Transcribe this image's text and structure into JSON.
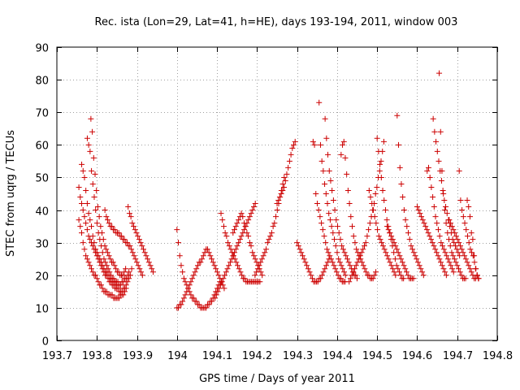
{
  "chart_data": {
    "type": "scatter",
    "title": "Rec. ista (Lon=29, Lat=41, h=HE), days 193-194, 2011, window 003",
    "xlabel": "GPS time / Days of year 2011",
    "ylabel": "STEC from uqrg / TECUs",
    "xlim": [
      193.7,
      194.8
    ],
    "ylim": [
      0,
      90
    ],
    "xticks": [
      193.7,
      193.8,
      193.9,
      194.0,
      194.1,
      194.2,
      194.3,
      194.4,
      194.5,
      194.6,
      194.7,
      194.8
    ],
    "xtick_labels": [
      "193.7",
      "193.8",
      "193.9",
      "194",
      "194.1",
      "194.2",
      "194.3",
      "194.4",
      "194.5",
      "194.6",
      "194.7",
      "194.8"
    ],
    "yticks": [
      0,
      10,
      20,
      30,
      40,
      50,
      60,
      70,
      80,
      90
    ],
    "ytick_labels": [
      "0",
      "10",
      "20",
      "30",
      "40",
      "50",
      "60",
      "70",
      "80",
      "90"
    ],
    "grid": true,
    "marker": "+",
    "color": "#cc0000",
    "x_step": 0.00347,
    "series": [
      {
        "name": "s1",
        "x_start": 193.755,
        "values": [
          37,
          35,
          33,
          30,
          28,
          26,
          25,
          24,
          23,
          22,
          21,
          20,
          20,
          19,
          18,
          17,
          17,
          16,
          15,
          15,
          15,
          14,
          14,
          14,
          14,
          13,
          13,
          13,
          13,
          13,
          14,
          14,
          14,
          15,
          16
        ]
      },
      {
        "name": "s2",
        "x_start": 193.755,
        "values": [
          47,
          44,
          42,
          40,
          38,
          36,
          34,
          32,
          31,
          30,
          29,
          28,
          27,
          26,
          25,
          24,
          23,
          22,
          21,
          20,
          20,
          19,
          18,
          18,
          17,
          17,
          16,
          16,
          16,
          15,
          15,
          15,
          16,
          16,
          17,
          18,
          19,
          20,
          22
        ]
      },
      {
        "name": "s3",
        "x_start": 193.762,
        "values": [
          54,
          52,
          50,
          46,
          42,
          39,
          37,
          35,
          32,
          30,
          28,
          27,
          26,
          25,
          24,
          23,
          22,
          21,
          21,
          20,
          19,
          19,
          18,
          18,
          18,
          17,
          17,
          17,
          17,
          18,
          18,
          19,
          19,
          20,
          21
        ]
      },
      {
        "name": "s4",
        "x_start": 193.776,
        "values": [
          62,
          60,
          58,
          52,
          48,
          44,
          40,
          36,
          33,
          31,
          29,
          27,
          25,
          24,
          23,
          22,
          21,
          20,
          19,
          19,
          18,
          18,
          18
        ]
      },
      {
        "name": "s5",
        "x_start": 193.785,
        "values": [
          68,
          64,
          56,
          51,
          46,
          41,
          38,
          35,
          33,
          31,
          29,
          28,
          27,
          26,
          25,
          24,
          24,
          23,
          22,
          21,
          21,
          20,
          20,
          20,
          21,
          22
        ]
      },
      {
        "name": "s6",
        "x_start": 193.82,
        "values": [
          40,
          38,
          37,
          36,
          35,
          35,
          34,
          34,
          33,
          33,
          33,
          32,
          32,
          31,
          31,
          30,
          30,
          29,
          29,
          28,
          27,
          26,
          25,
          24,
          23,
          22,
          21,
          20
        ]
      },
      {
        "name": "s7",
        "x_start": 193.878,
        "values": [
          41,
          39,
          38,
          36,
          35,
          34,
          33,
          32,
          31,
          30,
          29,
          28,
          27,
          26,
          25,
          24,
          23,
          22,
          21
        ]
      },
      {
        "name": "s8",
        "x_start": 194.0,
        "values": [
          34,
          30,
          26,
          23,
          21,
          19,
          18,
          17,
          16,
          15,
          14,
          13,
          13,
          12,
          12,
          11,
          11,
          10,
          10,
          10,
          10,
          10,
          11,
          11,
          12,
          12,
          13,
          14,
          15,
          16,
          17,
          18
        ]
      },
      {
        "name": "s9",
        "x_start": 194.0,
        "values": [
          10,
          10,
          11,
          11,
          12,
          13,
          14,
          15,
          16,
          17,
          18,
          19,
          20,
          21,
          22,
          23,
          24,
          24,
          25,
          26,
          27,
          28,
          28,
          27,
          26,
          25,
          24,
          23,
          22,
          21,
          20,
          19,
          18,
          17,
          16
        ]
      },
      {
        "name": "s10",
        "x_start": 194.095,
        "values": [
          13,
          14,
          15,
          16,
          17,
          18,
          19,
          20,
          21,
          22,
          23,
          24,
          25,
          26,
          27,
          28,
          29,
          30,
          31,
          32,
          33,
          34,
          35,
          36,
          37,
          38,
          39,
          40,
          41,
          42
        ]
      },
      {
        "name": "s11",
        "x_start": 194.11,
        "values": [
          39,
          37,
          35,
          33,
          32,
          30,
          29,
          28,
          27,
          26,
          25,
          24,
          23,
          22,
          21,
          20,
          19,
          19,
          18,
          18,
          18,
          18,
          18,
          18,
          18,
          18,
          18,
          18,
          18
        ]
      },
      {
        "name": "s12",
        "x_start": 194.14,
        "values": [
          33,
          34,
          35,
          36,
          37,
          38,
          39,
          38,
          36,
          35,
          33,
          32,
          30,
          29,
          27,
          26,
          25,
          24,
          23,
          22,
          21,
          20
        ]
      },
      {
        "name": "s13",
        "x_start": 194.195,
        "values": [
          20,
          21,
          22,
          23,
          24,
          25,
          26,
          27,
          28,
          30,
          31,
          32,
          33,
          35,
          36,
          38,
          40,
          42,
          44,
          46,
          48,
          50
        ]
      },
      {
        "name": "s14",
        "x_start": 194.25,
        "values": [
          42,
          43,
          44,
          45,
          46,
          47,
          49,
          51,
          53,
          55,
          57,
          59,
          60,
          61
        ]
      },
      {
        "name": "s15",
        "x_start": 194.3,
        "values": [
          30,
          29,
          28,
          27,
          26,
          25,
          24,
          23,
          22,
          21,
          20,
          19,
          18,
          18,
          18,
          18,
          19,
          19,
          20,
          21,
          22,
          23,
          24,
          25
        ]
      },
      {
        "name": "s16",
        "x_start": 194.34,
        "values": [
          61,
          60,
          45,
          42,
          40,
          38,
          36,
          34,
          32,
          30,
          28,
          27,
          26,
          25,
          24,
          23,
          22,
          21,
          20,
          19,
          19,
          18,
          18,
          18
        ]
      },
      {
        "name": "s17",
        "x_start": 194.355,
        "values": [
          73,
          60,
          55,
          52,
          48,
          45,
          42,
          39,
          37,
          35,
          33,
          31,
          29,
          27,
          25,
          24,
          23,
          22,
          21,
          20
        ]
      },
      {
        "name": "s18",
        "x_start": 194.37,
        "values": [
          68,
          62,
          57,
          52,
          49,
          46,
          43,
          40,
          37,
          35,
          33,
          31,
          29,
          28,
          27,
          26,
          25,
          24,
          23,
          22,
          21,
          20,
          20,
          19
        ]
      },
      {
        "name": "s19",
        "x_start": 194.41,
        "values": [
          57,
          60,
          61,
          56,
          51,
          46,
          42,
          38,
          35,
          32,
          30,
          28,
          27,
          26,
          25,
          24,
          23,
          22,
          21,
          20,
          20,
          19,
          19,
          19,
          20,
          21
        ]
      },
      {
        "name": "s20",
        "x_start": 194.43,
        "values": [
          18,
          19,
          20,
          21,
          22,
          23,
          24,
          25,
          26,
          27,
          28,
          29,
          30,
          32,
          34,
          36,
          38,
          40,
          42,
          45,
          47,
          50,
          52,
          55,
          58,
          61
        ]
      },
      {
        "name": "s21",
        "x_start": 194.48,
        "values": [
          46,
          44,
          42,
          40,
          38,
          36,
          34,
          32,
          31,
          30,
          29,
          28,
          27,
          26,
          25,
          24,
          23,
          22,
          21,
          20
        ]
      },
      {
        "name": "s22",
        "x_start": 194.5,
        "values": [
          62,
          58,
          54,
          50,
          46,
          43,
          40,
          37,
          35,
          33,
          31,
          29,
          27,
          25,
          23,
          22,
          21,
          20,
          19,
          19
        ]
      },
      {
        "name": "s23",
        "x_start": 194.525,
        "values": [
          35,
          34,
          33,
          32,
          31,
          30,
          29,
          28,
          27,
          26,
          25,
          24,
          23,
          22,
          21,
          20,
          19,
          19,
          19,
          19
        ]
      },
      {
        "name": "s24",
        "x_start": 194.55,
        "values": [
          69,
          60,
          53,
          48,
          44,
          40,
          37,
          35,
          33,
          31,
          29,
          28,
          27,
          26,
          25,
          24,
          23,
          22,
          21,
          20
        ]
      },
      {
        "name": "s25",
        "x_start": 194.6,
        "values": [
          41,
          40,
          39,
          38,
          37,
          36,
          35,
          34,
          33,
          32,
          31,
          30,
          29,
          28,
          27,
          26,
          25,
          24,
          23,
          22,
          21,
          20
        ]
      },
      {
        "name": "s26",
        "x_start": 194.625,
        "values": [
          52,
          53,
          50,
          47,
          44,
          41,
          38,
          36,
          34,
          32,
          30,
          29,
          28,
          27,
          26,
          25,
          24,
          23,
          22,
          21
        ]
      },
      {
        "name": "s27",
        "x_start": 194.64,
        "values": [
          68,
          64,
          61,
          58,
          55,
          52,
          49,
          46,
          43,
          41,
          39,
          37,
          35,
          33,
          31,
          30,
          29,
          28,
          27,
          26
        ]
      },
      {
        "name": "s28",
        "x_start": 194.655,
        "values": [
          82,
          64,
          52,
          45,
          40,
          36,
          33,
          31,
          29,
          27,
          26,
          25,
          24,
          23,
          22,
          21,
          20,
          19,
          19,
          19
        ]
      },
      {
        "name": "s29",
        "x_start": 194.68,
        "values": [
          37,
          36,
          35,
          34,
          33,
          32,
          31,
          30,
          29,
          28,
          27,
          26,
          25,
          24,
          23,
          22,
          21,
          20,
          19,
          19
        ]
      },
      {
        "name": "s30",
        "x_start": 194.705,
        "values": [
          52,
          43,
          40,
          38,
          36,
          34,
          32,
          30,
          28,
          27,
          26,
          24,
          22,
          20,
          19
        ]
      },
      {
        "name": "s31",
        "x_start": 194.725,
        "values": [
          43,
          41,
          38,
          33,
          31,
          26,
          22,
          20,
          19
        ]
      }
    ]
  }
}
